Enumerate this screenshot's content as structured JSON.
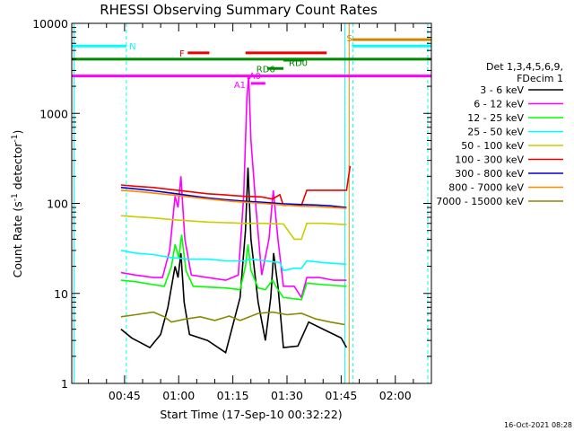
{
  "chart_data": {
    "type": "line",
    "title": "RHESSI Observing Summary Count Rates",
    "xlabel": "Start Time (17-Sep-10 00:32:22)",
    "ylabel_parts": [
      "Count Rate (s",
      "-1",
      " detector",
      "-1",
      ")"
    ],
    "ylog": true,
    "ylim": [
      1,
      10000
    ],
    "xlim_minutes": [
      32.37,
      132.0
    ],
    "y_ticks": [
      {
        "v": 1,
        "label": "1"
      },
      {
        "v": 10,
        "label": "10"
      },
      {
        "v": 100,
        "label": "100"
      },
      {
        "v": 1000,
        "label": "1000"
      },
      {
        "v": 10000,
        "label": "10000"
      }
    ],
    "x_ticks": [
      {
        "m": 47,
        "label": "00:45"
      },
      {
        "m": 62,
        "label": "01:00"
      },
      {
        "m": 77,
        "label": "01:15"
      },
      {
        "m": 92,
        "label": "01:30"
      },
      {
        "m": 107,
        "label": "01:45"
      },
      {
        "m": 122,
        "label": "02:00"
      }
    ],
    "legend": {
      "header": [
        "Det 1,3,4,5,6,9,",
        "FDecim 1"
      ],
      "entries": [
        {
          "label": "3 - 6 keV",
          "color": "#000000"
        },
        {
          "label": "6 - 12 keV",
          "color": "#ff00ff"
        },
        {
          "label": "12 - 25 keV",
          "color": "#00ff00"
        },
        {
          "label": "25 - 50 keV",
          "color": "#00ffff"
        },
        {
          "label": "50 - 100 keV",
          "color": "#cccc00"
        },
        {
          "label": "100 - 300 keV",
          "color": "#ee0000"
        },
        {
          "label": "300 - 800 keV",
          "color": "#0000cc"
        },
        {
          "label": "800 - 7000 keV",
          "color": "#ff8800"
        },
        {
          "label": "7000 - 15000 keV",
          "color": "#888800"
        }
      ]
    },
    "series": [
      {
        "color": "#000000",
        "points": [
          [
            46,
            4
          ],
          [
            49,
            3.2
          ],
          [
            54,
            2.5
          ],
          [
            57,
            3.5
          ],
          [
            59,
            7
          ],
          [
            61,
            20
          ],
          [
            61.8,
            15
          ],
          [
            62.6,
            28
          ],
          [
            63.5,
            8
          ],
          [
            65,
            3.5
          ],
          [
            70,
            3
          ],
          [
            75,
            2.2
          ],
          [
            79,
            9
          ],
          [
            80.5,
            50
          ],
          [
            81.2,
            250
          ],
          [
            82,
            40
          ],
          [
            84,
            8
          ],
          [
            86,
            3
          ],
          [
            87.5,
            9
          ],
          [
            88.3,
            28
          ],
          [
            89.5,
            12
          ],
          [
            91,
            2.5
          ],
          [
            95,
            2.6
          ],
          [
            98,
            4.8
          ],
          [
            102,
            4
          ],
          [
            107,
            3.2
          ],
          [
            108.5,
            2.5
          ]
        ]
      },
      {
        "color": "#ff00ff",
        "points": [
          [
            46,
            17
          ],
          [
            50,
            16
          ],
          [
            55,
            15
          ],
          [
            57.5,
            15
          ],
          [
            59.5,
            30
          ],
          [
            61,
            120
          ],
          [
            61.8,
            90
          ],
          [
            62.6,
            200
          ],
          [
            63.7,
            40
          ],
          [
            65.5,
            16
          ],
          [
            70,
            15
          ],
          [
            75,
            14
          ],
          [
            78.5,
            16
          ],
          [
            80,
            120
          ],
          [
            80.9,
            1500
          ],
          [
            81.4,
            2600
          ],
          [
            82,
            500
          ],
          [
            83.5,
            80
          ],
          [
            85,
            16
          ],
          [
            87,
            40
          ],
          [
            88.2,
            140
          ],
          [
            89.5,
            40
          ],
          [
            91,
            12
          ],
          [
            94,
            12
          ],
          [
            96,
            9
          ],
          [
            97.5,
            15
          ],
          [
            101,
            15
          ],
          [
            105,
            14
          ],
          [
            108.5,
            14
          ]
        ]
      },
      {
        "color": "#00ff00",
        "points": [
          [
            46,
            14
          ],
          [
            50,
            13.5
          ],
          [
            55,
            12.5
          ],
          [
            58,
            12
          ],
          [
            60,
            20
          ],
          [
            61,
            35
          ],
          [
            62,
            25
          ],
          [
            62.8,
            45
          ],
          [
            64,
            18
          ],
          [
            66,
            12
          ],
          [
            75,
            11.5
          ],
          [
            79,
            11
          ],
          [
            80.5,
            20
          ],
          [
            81.2,
            35
          ],
          [
            82,
            18
          ],
          [
            84,
            11.5
          ],
          [
            86,
            11
          ],
          [
            88,
            14
          ],
          [
            89.5,
            11
          ],
          [
            91,
            9
          ],
          [
            96,
            8.5
          ],
          [
            97.5,
            13
          ],
          [
            102,
            12.5
          ],
          [
            108.5,
            12
          ]
        ]
      },
      {
        "color": "#00ffff",
        "points": [
          [
            46,
            30
          ],
          [
            50,
            28
          ],
          [
            55,
            27
          ],
          [
            60,
            25
          ],
          [
            65,
            24
          ],
          [
            70,
            24
          ],
          [
            75,
            23
          ],
          [
            80,
            23
          ],
          [
            82,
            24
          ],
          [
            86,
            23
          ],
          [
            90,
            22
          ],
          [
            91,
            18
          ],
          [
            94,
            19
          ],
          [
            96,
            19
          ],
          [
            97.5,
            23
          ],
          [
            102,
            22
          ],
          [
            108.5,
            21
          ]
        ]
      },
      {
        "color": "#cccc00",
        "points": [
          [
            46,
            73
          ],
          [
            50,
            71
          ],
          [
            55,
            69
          ],
          [
            60,
            66
          ],
          [
            65,
            64
          ],
          [
            70,
            62
          ],
          [
            75,
            61
          ],
          [
            80,
            60
          ],
          [
            85,
            60
          ],
          [
            91,
            59
          ],
          [
            94,
            40
          ],
          [
            96,
            40
          ],
          [
            97.5,
            60
          ],
          [
            102,
            60
          ],
          [
            108.5,
            58
          ]
        ]
      },
      {
        "color": "#ee0000",
        "points": [
          [
            46,
            160
          ],
          [
            50,
            155
          ],
          [
            55,
            150
          ],
          [
            60,
            142
          ],
          [
            65,
            135
          ],
          [
            70,
            128
          ],
          [
            75,
            124
          ],
          [
            80,
            120
          ],
          [
            85,
            118
          ],
          [
            88,
            112
          ],
          [
            90,
            125
          ],
          [
            91,
            95
          ],
          [
            94,
            95
          ],
          [
            96,
            95
          ],
          [
            97.5,
            140
          ],
          [
            102,
            140
          ],
          [
            108.5,
            140
          ],
          [
            109.5,
            260
          ]
        ]
      },
      {
        "color": "#0000cc",
        "points": [
          [
            46,
            150
          ],
          [
            50,
            145
          ],
          [
            55,
            138
          ],
          [
            60,
            130
          ],
          [
            65,
            122
          ],
          [
            70,
            115
          ],
          [
            75,
            110
          ],
          [
            80,
            106
          ],
          [
            85,
            103
          ],
          [
            91,
            99
          ],
          [
            96,
            97
          ],
          [
            100,
            96
          ],
          [
            104,
            94
          ],
          [
            108.5,
            90
          ]
        ]
      },
      {
        "color": "#ff8800",
        "points": [
          [
            46,
            140
          ],
          [
            50,
            136
          ],
          [
            55,
            130
          ],
          [
            60,
            124
          ],
          [
            65,
            118
          ],
          [
            70,
            112
          ],
          [
            75,
            107
          ],
          [
            80,
            103
          ],
          [
            85,
            100
          ],
          [
            91,
            96
          ],
          [
            96,
            93
          ],
          [
            100,
            92
          ],
          [
            104,
            90
          ],
          [
            108.5,
            88
          ]
        ]
      },
      {
        "color": "#888800",
        "points": [
          [
            46,
            5.5
          ],
          [
            50,
            5.8
          ],
          [
            55,
            6.2
          ],
          [
            58,
            5.5
          ],
          [
            60,
            4.8
          ],
          [
            64,
            5.2
          ],
          [
            68,
            5.5
          ],
          [
            72,
            5
          ],
          [
            76,
            5.6
          ],
          [
            79,
            5
          ],
          [
            84,
            6
          ],
          [
            88,
            6.2
          ],
          [
            92,
            5.8
          ],
          [
            96,
            6
          ],
          [
            100,
            5.2
          ],
          [
            104,
            4.8
          ],
          [
            108,
            4.5
          ]
        ]
      }
    ],
    "flag_bars": [
      {
        "color": "#00ffff",
        "label": "N",
        "y": 5600,
        "x0": 32.37,
        "x1": 47.5,
        "lx": 48.3,
        "ly": 5600
      },
      {
        "color": "#ff00ff",
        "label": "",
        "y": 2600,
        "x0": 32.37,
        "x1": 132.0
      },
      {
        "color": "#008800",
        "label": "",
        "y": 4000,
        "x0": 32.37,
        "x1": 132.0
      },
      {
        "color": "#ee0000",
        "label": "F",
        "y": 4700,
        "x0": 64.5,
        "x1": 70.5,
        "lx": 62.2,
        "ly": 4700
      },
      {
        "color": "#ee0000",
        "label": "",
        "y": 4700,
        "x0": 80.5,
        "x1": 103.0
      },
      {
        "color": "#008800",
        "label": "RD0",
        "y": 3900,
        "x0": 91.0,
        "x1": 96.5,
        "lx": 92.5,
        "ly": 3700
      },
      {
        "color": "#008800",
        "label": "RD6",
        "y": 3150,
        "x0": 86.5,
        "x1": 91.0,
        "lx": 83.5,
        "ly": 3150
      },
      {
        "color": "#ff00ff",
        "label": "A0",
        "y": 2500,
        "x0": 81.0,
        "x1": 81.6,
        "lx": 81.5,
        "ly": 2650
      },
      {
        "color": "#ff00ff",
        "label": "A1",
        "y": 2150,
        "x0": 82.0,
        "x1": 86.0,
        "lx": 77.3,
        "ly": 2100
      },
      {
        "color": "#cc8800",
        "label": "S",
        "y": 6600,
        "x0": 110.0,
        "x1": 132.0,
        "lx": 108.5,
        "ly": 6900
      },
      {
        "color": "#00ffff",
        "label": "",
        "y": 5600,
        "x0": 110.0,
        "x1": 132.0
      }
    ],
    "vlines": [
      {
        "m": 33.0,
        "color": "#00ffff",
        "dash": false
      },
      {
        "m": 47.5,
        "color": "#00ffff",
        "dash": true
      },
      {
        "m": 108.0,
        "color": "#00ffff",
        "dash": false
      },
      {
        "m": 110.3,
        "color": "#00ffff",
        "dash": true
      },
      {
        "m": 109.2,
        "color": "#cc8800",
        "dash": false
      },
      {
        "m": 131.0,
        "color": "#00ffff",
        "dash": true
      }
    ],
    "timestamp": "16-Oct-2021 08:28"
  }
}
